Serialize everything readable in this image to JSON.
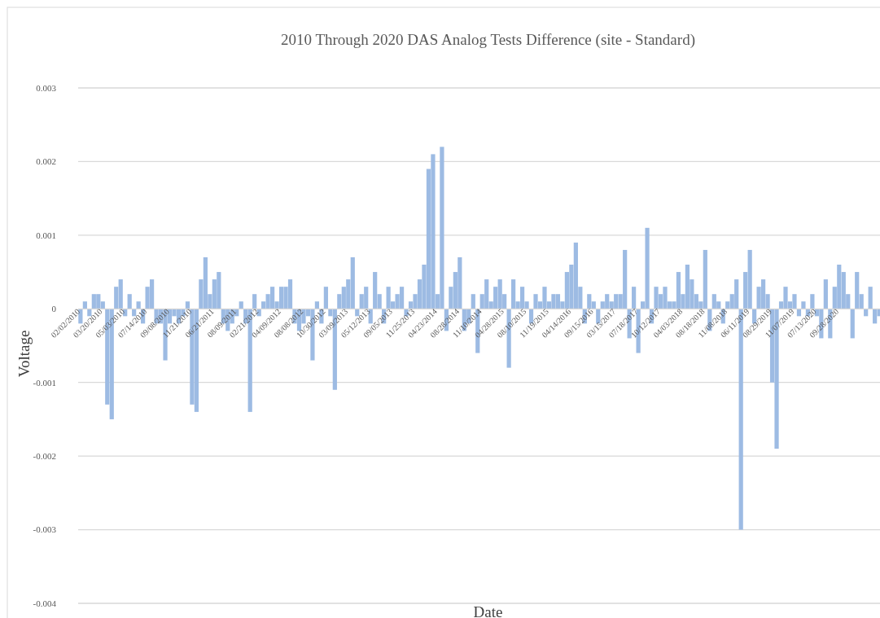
{
  "chart_data": {
    "type": "bar",
    "title": "2010 Through 2020 DAS Analog Tests Difference (site - Standard)",
    "xlabel": "Date",
    "ylabel": "Voltage",
    "categories": [
      "02/02/2010",
      null,
      null,
      null,
      null,
      "03/20/2010",
      null,
      null,
      null,
      null,
      "05/03/2010",
      null,
      null,
      null,
      null,
      "07/14/2010",
      null,
      null,
      null,
      null,
      "09/08/2010",
      null,
      null,
      null,
      null,
      "11/21/2010",
      null,
      null,
      null,
      null,
      "06/21/2011",
      null,
      null,
      null,
      null,
      "08/09/2011",
      null,
      null,
      null,
      null,
      "02/21/2012",
      null,
      null,
      null,
      null,
      "04/09/2012",
      null,
      null,
      null,
      null,
      "08/08/2012",
      null,
      null,
      null,
      null,
      "10/30/2012",
      null,
      null,
      null,
      null,
      "03/09/2013",
      null,
      null,
      null,
      null,
      "05/12/2013",
      null,
      null,
      null,
      null,
      "09/05/2013",
      null,
      null,
      null,
      null,
      "11/25/2013",
      null,
      null,
      null,
      null,
      "04/23/2014",
      null,
      null,
      null,
      null,
      "08/28/2014",
      null,
      null,
      null,
      null,
      "11/10/2014",
      null,
      null,
      null,
      null,
      "04/28/2015",
      null,
      null,
      null,
      null,
      "08/10/2015",
      null,
      null,
      null,
      null,
      "11/19/2015",
      null,
      null,
      null,
      null,
      "04/14/2016",
      null,
      null,
      null,
      null,
      "09/15/2016",
      null,
      null,
      null,
      null,
      "03/15/2017",
      null,
      null,
      null,
      null,
      "07/18/2017",
      null,
      null,
      null,
      null,
      "10/12/2017",
      null,
      null,
      null,
      null,
      "04/03/2018",
      null,
      null,
      null,
      null,
      "08/18/2018",
      null,
      null,
      null,
      null,
      "11/08/2018",
      null,
      null,
      null,
      null,
      "06/11/2019",
      null,
      null,
      null,
      null,
      "08/29/2019",
      null,
      null,
      null,
      null,
      "11/07/2019",
      null,
      null,
      null,
      null,
      "07/13/2020",
      null,
      null,
      null,
      null,
      "09/28/2020",
      null,
      null,
      null,
      null,
      null,
      null,
      null,
      null,
      null
    ],
    "values": [
      -0.0002,
      0.0001,
      -0.0001,
      0.0002,
      0.0002,
      0.0001,
      -0.0013,
      -0.0015,
      0.0003,
      0.0004,
      -0.0001,
      0.0002,
      -0.0001,
      0.0001,
      -0.0002,
      0.0003,
      0.0004,
      -0.0002,
      -0.0002,
      -0.0007,
      -0.0002,
      -0.0001,
      -0.0002,
      -0.0001,
      0.0001,
      -0.0013,
      -0.0014,
      0.0004,
      0.0007,
      0.0002,
      0.0004,
      0.0005,
      -0.0002,
      -0.0003,
      -0.0002,
      -0.0001,
      0.0001,
      -0.0002,
      -0.0014,
      0.0002,
      -0.0001,
      0.0001,
      0.0002,
      0.0003,
      0.0001,
      0.0003,
      0.0003,
      0.0004,
      -0.0002,
      -0.0003,
      -0.0002,
      -0.0001,
      -0.0007,
      0.0001,
      -0.0002,
      0.0003,
      -0.0001,
      -0.0011,
      0.0002,
      0.0003,
      0.0004,
      0.0007,
      -0.0001,
      0.0002,
      0.0003,
      -0.0002,
      0.0005,
      0.0002,
      -0.0002,
      0.0003,
      0.0001,
      0.0002,
      0.0003,
      -0.0001,
      0.0001,
      0.0002,
      0.0004,
      0.0006,
      0.0019,
      0.0021,
      0.0002,
      0.0022,
      -0.0003,
      0.0003,
      0.0005,
      0.0007,
      -0.0003,
      -0.0002,
      0.0002,
      -0.0006,
      0.0002,
      0.0004,
      0.0001,
      0.0003,
      0.0004,
      0.0002,
      -0.0008,
      0.0004,
      0.0001,
      0.0003,
      0.0001,
      -0.0002,
      0.0002,
      0.0001,
      0.0003,
      0.0001,
      0.0002,
      0.0002,
      0.0001,
      0.0005,
      0.0006,
      0.0009,
      0.0003,
      -0.0002,
      0.0002,
      0.0001,
      -0.0002,
      0.0001,
      0.0002,
      0.0001,
      0.0002,
      0.0002,
      0.0008,
      -0.0004,
      0.0003,
      -0.0006,
      0.0001,
      0.0011,
      -0.0002,
      0.0003,
      0.0002,
      0.0003,
      0.0001,
      0.0001,
      0.0005,
      0.0002,
      0.0006,
      0.0004,
      0.0002,
      0.0001,
      0.0008,
      -0.0003,
      0.0002,
      0.0001,
      -0.0002,
      0.0001,
      0.0002,
      0.0004,
      -0.003,
      0.0005,
      0.0008,
      -0.0002,
      0.0003,
      0.0004,
      0.0002,
      -0.001,
      -0.0019,
      0.0001,
      0.0003,
      0.0001,
      0.0002,
      -0.0001,
      0.0001,
      -0.0001,
      0.0002,
      -0.0001,
      -0.0004,
      0.0004,
      -0.0004,
      0.0003,
      0.0006,
      0.0005,
      0.0002,
      -0.0004,
      0.0005,
      0.0002,
      -0.0001,
      0.0003,
      -0.0002,
      -0.0001
    ],
    "color": "#9dbbe3",
    "ylim": [
      -0.004,
      0.003
    ],
    "yticks": [
      -0.004,
      -0.003,
      -0.002,
      -0.001,
      0,
      0.001,
      0.002,
      0.003
    ],
    "grid": "y"
  }
}
